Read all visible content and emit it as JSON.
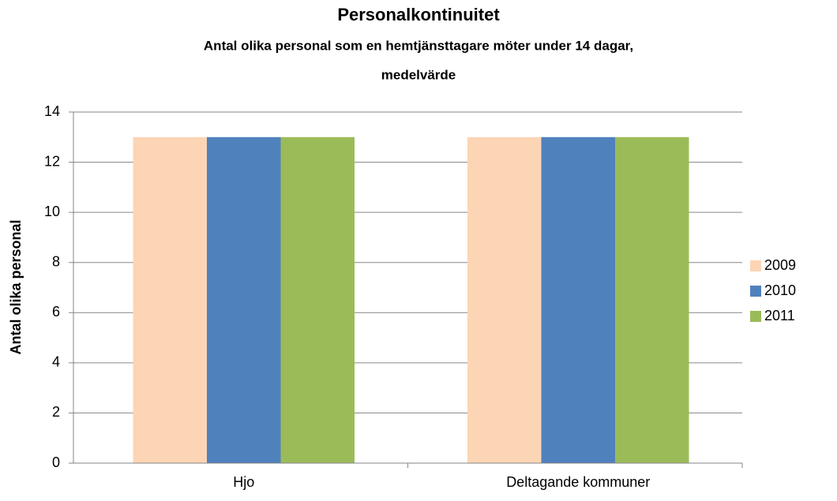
{
  "chart_data": {
    "type": "bar",
    "title": "Personalkontinuitet",
    "subtitle": [
      "Antal olika personal som en hemtjänsttagare möter under 14 dagar,",
      "medelvärde"
    ],
    "y_label": "Antal olika personal",
    "categories": [
      "Hjo",
      "Deltagande kommuner"
    ],
    "series": [
      {
        "name": "2009",
        "color": "#fcd5b5",
        "values": [
          13,
          13
        ]
      },
      {
        "name": "2010",
        "color": "#4f81bd",
        "values": [
          13,
          13
        ]
      },
      {
        "name": "2011",
        "color": "#9bbb59",
        "values": [
          13,
          13
        ]
      }
    ],
    "ylim": [
      0,
      14
    ],
    "yticks": [
      0,
      2,
      4,
      6,
      8,
      10,
      12,
      14
    ],
    "grid": true,
    "legend": "right"
  }
}
